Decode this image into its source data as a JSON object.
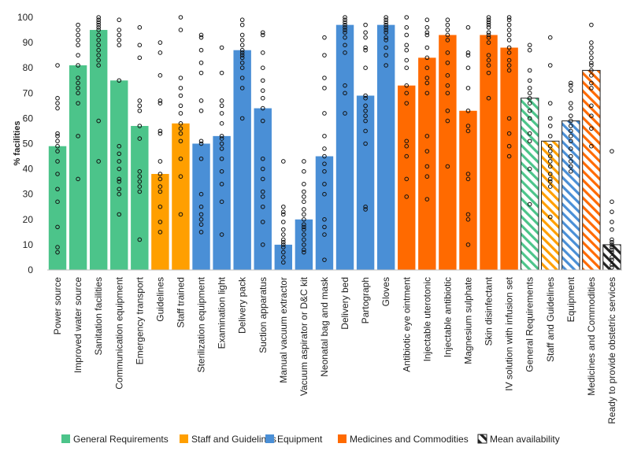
{
  "chart_data": {
    "type": "bar",
    "ylabel": "% facilities",
    "ylim": [
      0,
      100
    ],
    "yticks": [
      0,
      10,
      20,
      30,
      40,
      50,
      60,
      70,
      80,
      90,
      100
    ],
    "grid": false,
    "legend_position": "bottom",
    "groups": [
      {
        "name": "General Requirements",
        "color": "#4cc48a"
      },
      {
        "name": "Staff and Guidelines",
        "color": "#ff9f00"
      },
      {
        "name": "Equipment",
        "color": "#4a8fd6"
      },
      {
        "name": "Medicines and Commodities",
        "color": "#ff6a00"
      },
      {
        "name": "Mean availability",
        "color": "#222222"
      }
    ],
    "bars": [
      {
        "label": "Power source",
        "value": 49,
        "group": 0,
        "hatched": false,
        "points": [
          7,
          9,
          17,
          27,
          32,
          38,
          43,
          47,
          49,
          51,
          53,
          54,
          64,
          66,
          68,
          81
        ]
      },
      {
        "label": "Improved water source",
        "value": 81,
        "group": 0,
        "hatched": false,
        "points": [
          36,
          53,
          66,
          70,
          72,
          74,
          76,
          81,
          85,
          89,
          91,
          93,
          95,
          97
        ]
      },
      {
        "label": "Sanitation facilities",
        "value": 95,
        "group": 0,
        "hatched": false,
        "points": [
          43,
          59,
          81,
          83,
          85,
          87,
          89,
          91,
          93,
          95,
          96,
          97,
          98,
          99,
          100
        ]
      },
      {
        "label": "Communication equipment",
        "value": 75,
        "group": 0,
        "hatched": false,
        "points": [
          22,
          30,
          32,
          35,
          36,
          40,
          43,
          46,
          49,
          75,
          89,
          91,
          93,
          95,
          99
        ]
      },
      {
        "label": "Emergency transport",
        "value": 57,
        "group": 0,
        "hatched": false,
        "points": [
          12,
          31,
          33,
          35,
          37,
          39,
          52,
          57,
          63,
          65,
          67,
          84,
          89,
          96
        ]
      },
      {
        "label": "Guidelines",
        "value": 38,
        "group": 1,
        "hatched": false,
        "points": [
          15,
          19,
          25,
          31,
          33,
          36,
          38,
          43,
          54,
          55,
          66,
          67,
          77,
          86,
          90
        ]
      },
      {
        "label": "Staff trained",
        "value": 58,
        "group": 1,
        "hatched": false,
        "points": [
          22,
          37,
          44,
          51,
          54,
          56,
          58,
          62,
          65,
          69,
          72,
          76,
          95,
          100
        ]
      },
      {
        "label": "Sterilization equipment",
        "value": 50,
        "group": 2,
        "hatched": false,
        "points": [
          15,
          18,
          20,
          22,
          25,
          30,
          44,
          50,
          51,
          63,
          67,
          78,
          82,
          87,
          92,
          93
        ]
      },
      {
        "label": "Examination light",
        "value": 53,
        "group": 2,
        "hatched": false,
        "points": [
          14,
          27,
          34,
          39,
          44,
          48,
          50,
          52,
          53,
          58,
          62,
          65,
          67,
          78,
          88
        ]
      },
      {
        "label": "Delivery pack",
        "value": 87,
        "group": 2,
        "hatched": false,
        "points": [
          60,
          72,
          76,
          80,
          82,
          84,
          85,
          86,
          87,
          89,
          91,
          93,
          97,
          99
        ]
      },
      {
        "label": "Suction apparatus",
        "value": 64,
        "group": 2,
        "hatched": false,
        "points": [
          10,
          19,
          25,
          29,
          31,
          36,
          40,
          44,
          59,
          64,
          68,
          71,
          75,
          80,
          86,
          93,
          94
        ]
      },
      {
        "label": "Manual vacuum extractor",
        "value": 10,
        "group": 2,
        "hatched": false,
        "points": [
          3,
          5,
          7,
          9,
          10,
          11,
          12,
          14,
          16,
          19,
          22,
          23,
          25,
          43
        ]
      },
      {
        "label": "Vacuum aspirator or D&C kit",
        "value": 20,
        "group": 2,
        "hatched": false,
        "points": [
          7,
          8,
          10,
          12,
          14,
          16,
          17,
          18,
          20,
          22,
          24,
          27,
          29,
          31,
          34,
          39,
          43
        ]
      },
      {
        "label": "Neonatal bag and mask",
        "value": 45,
        "group": 2,
        "hatched": false,
        "points": [
          4,
          14,
          17,
          20,
          30,
          34,
          39,
          42,
          45,
          48,
          53,
          62,
          72,
          76,
          85,
          92
        ]
      },
      {
        "label": "Delivery bed",
        "value": 97,
        "group": 2,
        "hatched": false,
        "points": [
          62,
          70,
          73,
          86,
          89,
          92,
          94,
          95,
          96,
          97,
          98,
          99,
          100
        ]
      },
      {
        "label": "Partograph",
        "value": 69,
        "group": 2,
        "hatched": false,
        "points": [
          24,
          25,
          50,
          55,
          59,
          61,
          63,
          65,
          68,
          69,
          80,
          87,
          88,
          92,
          94,
          97
        ]
      },
      {
        "label": "Gloves",
        "value": 97,
        "group": 2,
        "hatched": false,
        "points": [
          81,
          85,
          88,
          91,
          92,
          94,
          95,
          96,
          97,
          98,
          99,
          100
        ]
      },
      {
        "label": "Antibiotic eye ointment",
        "value": 73,
        "group": 3,
        "hatched": false,
        "points": [
          29,
          36,
          45,
          49,
          51,
          66,
          70,
          73,
          80,
          83,
          87,
          89,
          93,
          96,
          100
        ]
      },
      {
        "label": "Injectable uterotonic",
        "value": 84,
        "group": 3,
        "hatched": false,
        "points": [
          28,
          37,
          41,
          47,
          53,
          70,
          74,
          76,
          80,
          84,
          88,
          93,
          94,
          96,
          99
        ]
      },
      {
        "label": "Injectable antibiotic",
        "value": 93,
        "group": 3,
        "hatched": false,
        "points": [
          41,
          59,
          63,
          70,
          73,
          77,
          82,
          86,
          91,
          93,
          95,
          97,
          99
        ]
      },
      {
        "label": "Magnesium sulphate",
        "value": 63,
        "group": 3,
        "hatched": false,
        "points": [
          10,
          20,
          22,
          36,
          38,
          55,
          57,
          63,
          72,
          80,
          85,
          86,
          96
        ]
      },
      {
        "label": "Skin disinfectant",
        "value": 93,
        "group": 3,
        "hatched": false,
        "points": [
          68,
          78,
          81,
          83,
          85,
          90,
          92,
          93,
          94,
          96,
          97,
          98,
          99,
          100
        ]
      },
      {
        "label": "IV solution with infusion set",
        "value": 88,
        "group": 3,
        "hatched": false,
        "points": [
          45,
          49,
          54,
          60,
          79,
          81,
          83,
          86,
          88,
          91,
          93,
          95,
          97,
          99,
          100
        ]
      },
      {
        "label": "General Requirements",
        "value": 68,
        "group": 0,
        "hatched": true,
        "points": [
          26,
          40,
          51,
          54,
          60,
          63,
          66,
          68,
          70,
          72,
          75,
          79,
          87,
          89
        ]
      },
      {
        "label": "Staff and Guidelines",
        "value": 51,
        "group": 1,
        "hatched": true,
        "points": [
          21,
          33,
          35,
          36,
          38,
          41,
          43,
          45,
          47,
          49,
          53,
          57,
          60,
          66,
          81,
          92
        ]
      },
      {
        "label": "Equipment",
        "value": 59,
        "group": 2,
        "hatched": true,
        "points": [
          39,
          41,
          43,
          45,
          48,
          51,
          53,
          55,
          57,
          59,
          61,
          64,
          66,
          71,
          73,
          74
        ]
      },
      {
        "label": "Medicines and Commodities",
        "value": 79,
        "group": 3,
        "hatched": true,
        "points": [
          49,
          56,
          61,
          65,
          72,
          74,
          77,
          79,
          81,
          82,
          84,
          86,
          88,
          90,
          97
        ]
      },
      {
        "label": "Ready to provide obstetric services",
        "value": 10,
        "group": 4,
        "hatched": true,
        "points": [
          1,
          2,
          4,
          5,
          7,
          8,
          9,
          10,
          11,
          12,
          16,
          19,
          23,
          27,
          47
        ]
      }
    ]
  }
}
